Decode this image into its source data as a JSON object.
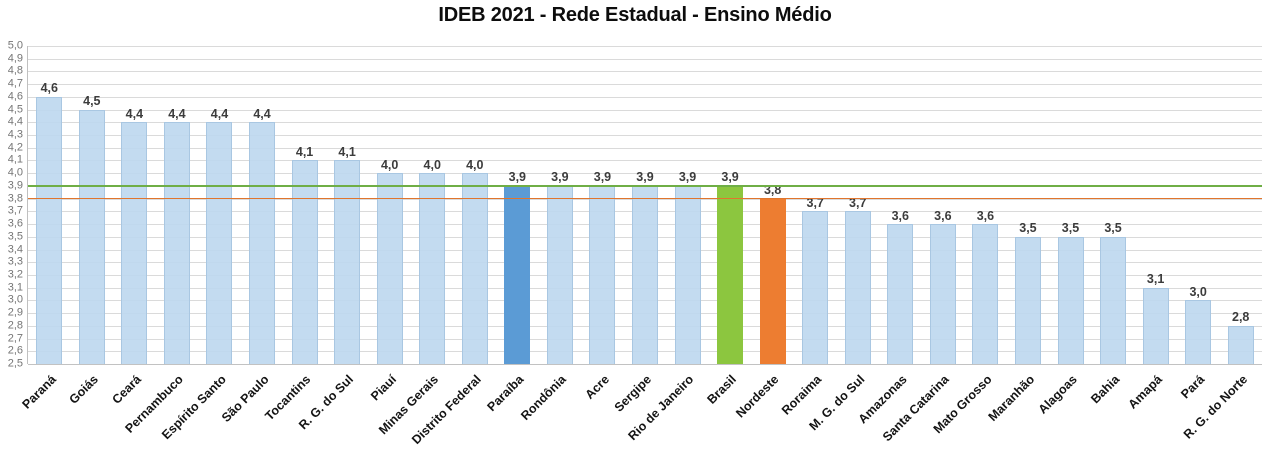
{
  "title": "IDEB 2021 - Rede Estadual - Ensino Médio",
  "background": "#FFFFFF",
  "chart_data": {
    "type": "bar",
    "title": "IDEB 2021 - Rede Estadual - Ensino Médio",
    "xlabel": "",
    "ylabel": "",
    "grid": true,
    "legend": "none",
    "categories": [
      "Paraná",
      "Goiás",
      "Ceará",
      "Pernambuco",
      "Espírito Santo",
      "São Paulo",
      "Tocantins",
      "R. G. do Sul",
      "Piauí",
      "Minas Gerais",
      "Distrito Federal",
      "Paraíba",
      "Rondônia",
      "Acre",
      "Sergipe",
      "Rio de Janeiro",
      "Brasil",
      "Nordeste",
      "Roraima",
      "M. G. do Sul",
      "Amazonas",
      "Santa Catarina",
      "Mato Grosso",
      "Maranhão",
      "Alagoas",
      "Bahia",
      "Amapá",
      "Pará",
      "R. G. do Norte"
    ],
    "values": [
      4.6,
      4.5,
      4.4,
      4.4,
      4.4,
      4.4,
      4.1,
      4.1,
      4.0,
      4.0,
      4.0,
      3.9,
      3.9,
      3.9,
      3.9,
      3.9,
      3.9,
      3.8,
      3.7,
      3.7,
      3.6,
      3.6,
      3.6,
      3.5,
      3.5,
      3.5,
      3.1,
      3.0,
      2.8
    ],
    "value_labels": [
      "4,6",
      "4,5",
      "4,4",
      "4,4",
      "4,4",
      "4,4",
      "4,1",
      "4,1",
      "4,0",
      "4,0",
      "4,0",
      "3,9",
      "3,9",
      "3,9",
      "3,9",
      "3,9",
      "3,9",
      "3,8",
      "3,7",
      "3,7",
      "3,6",
      "3,6",
      "3,6",
      "3,5",
      "3,5",
      "3,5",
      "3,1",
      "3,0",
      "2,8"
    ],
    "bar_colors": [
      "state",
      "state",
      "state",
      "state",
      "state",
      "state",
      "state",
      "state",
      "state",
      "state",
      "state",
      "paraiba",
      "state",
      "state",
      "state",
      "state",
      "brasil",
      "nordeste",
      "state",
      "state",
      "state",
      "state",
      "state",
      "state",
      "state",
      "state",
      "state",
      "state",
      "state"
    ],
    "colors": {
      "state": {
        "fill": "rgba(189,215,238,0.9)",
        "border": "#A9C7E2"
      },
      "paraiba": {
        "fill": "#5B9BD5",
        "border": "#5B9BD5"
      },
      "brasil": {
        "fill": "#8CC63F",
        "border": "#8CC63F"
      },
      "nordeste": {
        "fill": "#ED7D31",
        "border": "#ED7D31"
      }
    },
    "y_axis": {
      "min": 2.5,
      "max": 5.0,
      "step": 0.1,
      "tick_labels": [
        "5,0",
        "4,9",
        "4,8",
        "4,7",
        "4,6",
        "4,5",
        "4,4",
        "4,3",
        "4,2",
        "4,1",
        "4,0",
        "3,9",
        "3,8",
        "3,7",
        "3,6",
        "3,5",
        "3,4",
        "3,3",
        "3,2",
        "3,1",
        "3,0",
        "2,9",
        "2,8",
        "2,7",
        "2,6",
        "2,5"
      ]
    },
    "reference_lines": [
      {
        "name": "brasil-average-line",
        "value": 3.9,
        "color": "#6FAE46"
      },
      {
        "name": "nordeste-average-line",
        "value": 3.8,
        "color": "#E0752D"
      }
    ]
  }
}
